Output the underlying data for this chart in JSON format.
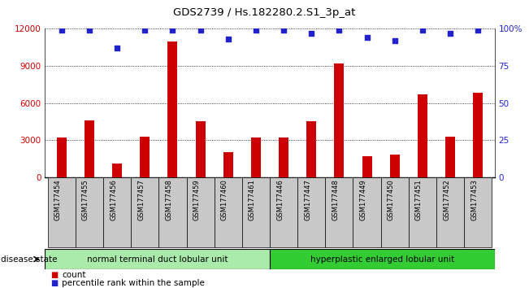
{
  "title": "GDS2739 / Hs.182280.2.S1_3p_at",
  "samples": [
    "GSM177454",
    "GSM177455",
    "GSM177456",
    "GSM177457",
    "GSM177458",
    "GSM177459",
    "GSM177460",
    "GSM177461",
    "GSM177446",
    "GSM177447",
    "GSM177448",
    "GSM177449",
    "GSM177450",
    "GSM177451",
    "GSM177452",
    "GSM177453"
  ],
  "counts": [
    3200,
    4600,
    1100,
    3300,
    11000,
    4500,
    2000,
    3200,
    3200,
    4500,
    9200,
    1700,
    1800,
    6700,
    3300,
    6800
  ],
  "percentiles": [
    99,
    99,
    87,
    99,
    99,
    99,
    93,
    99,
    99,
    97,
    99,
    94,
    92,
    99,
    97,
    99
  ],
  "ylim_left": [
    0,
    12000
  ],
  "ylim_right": [
    0,
    100
  ],
  "yticks_left": [
    0,
    3000,
    6000,
    9000,
    12000
  ],
  "yticks_right": [
    0,
    25,
    50,
    75,
    100
  ],
  "group1_label": "normal terminal duct lobular unit",
  "group2_label": "hyperplastic enlarged lobular unit",
  "group1_count": 8,
  "group2_count": 8,
  "disease_state_label": "disease state",
  "bar_color": "#cc0000",
  "dot_color": "#2222cc",
  "group1_color": "#aaeaaa",
  "group2_color": "#33cc33",
  "legend_count_label": "count",
  "legend_percentile_label": "percentile rank within the sample",
  "tick_label_color_left": "#cc0000",
  "tick_label_color_right": "#2222cc",
  "background_color": "#ffffff",
  "xticklabel_bg": "#c8c8c8"
}
